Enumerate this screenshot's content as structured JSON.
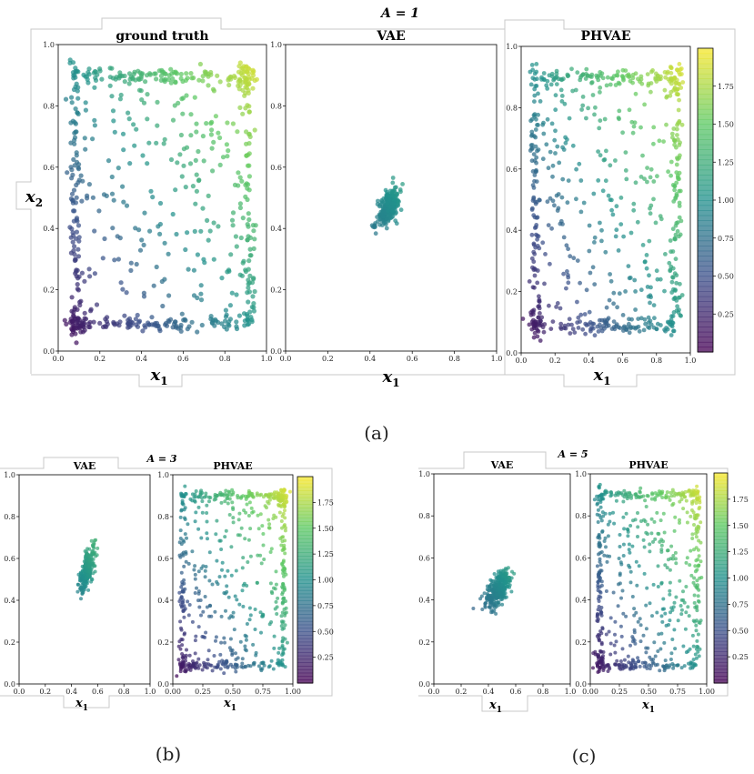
{
  "figure": {
    "captions": {
      "a": "(a)",
      "b": "(b)",
      "c": "(c)"
    },
    "group_titles": {
      "a": "A = 1",
      "b": "A = 3",
      "c": "A = 5"
    },
    "colormap": "viridis",
    "colormap_stops": [
      "#440154",
      "#3b528b",
      "#21918c",
      "#5ec962",
      "#fde725"
    ],
    "colorbar_ticks_row1": [
      "0.25",
      "0.50",
      "0.75",
      "1.00",
      "1.25",
      "1.50",
      "1.75"
    ],
    "colorbar_ticks_small": [
      "0.25",
      "0.50",
      "0.75",
      "1.00",
      "1.25",
      "1.50",
      "1.75"
    ],
    "ticks_unit": [
      "0.0",
      "0.2",
      "0.4",
      "0.6",
      "0.8",
      "1.0"
    ],
    "ticks_quarter": [
      "0.00",
      "0.25",
      "0.50",
      "0.75",
      "1.00"
    ]
  },
  "chart_data": [
    {
      "type": "scatter",
      "group": "a",
      "title": "ground truth",
      "xlabel": "x1",
      "ylabel": "x2",
      "xlim": [
        0,
        1
      ],
      "ylim": [
        0,
        1
      ],
      "distribution": "L-shaped corridor edges with uniform interior; color = x1 + x2"
    },
    {
      "type": "scatter",
      "group": "a",
      "title": "VAE",
      "xlabel": "x1",
      "ylabel": "",
      "xlim": [
        0,
        1
      ],
      "ylim": [
        0,
        1
      ],
      "distribution": "compact cluster centered near (0.49, 0.47)"
    },
    {
      "type": "scatter",
      "group": "a",
      "title": "PHVAE",
      "xlabel": "x1",
      "ylabel": "",
      "xlim": [
        0,
        1
      ],
      "ylim": [
        0,
        1
      ],
      "colorbar_range": [
        0.0,
        2.0
      ],
      "distribution": "L-shaped corridor edges with uniform interior"
    },
    {
      "type": "scatter",
      "group": "b",
      "title": "VAE",
      "xlabel": "x1",
      "ylabel": "",
      "xlim": [
        0,
        1
      ],
      "ylim": [
        0,
        1
      ],
      "distribution": "elongated cluster centered near (0.52, 0.55)"
    },
    {
      "type": "scatter",
      "group": "b",
      "title": "PHVAE",
      "xlabel": "x1",
      "ylabel": "",
      "xlim": [
        0,
        1
      ],
      "ylim": [
        0,
        1
      ],
      "colorbar_range": [
        0.0,
        2.0
      ],
      "distribution": "L-shaped corridor edges with uniform interior"
    },
    {
      "type": "scatter",
      "group": "c",
      "title": "VAE",
      "xlabel": "x1",
      "ylabel": "",
      "xlim": [
        0,
        1
      ],
      "ylim": [
        0,
        1
      ],
      "distribution": "cluster centered near (0.47, 0.45)"
    },
    {
      "type": "scatter",
      "group": "c",
      "title": "PHVAE",
      "xlabel": "x1",
      "ylabel": "",
      "xlim": [
        0,
        1
      ],
      "ylim": [
        0,
        1
      ],
      "colorbar_range": [
        0.0,
        2.0
      ],
      "distribution": "L-shaped corridor edges with uniform interior"
    }
  ]
}
